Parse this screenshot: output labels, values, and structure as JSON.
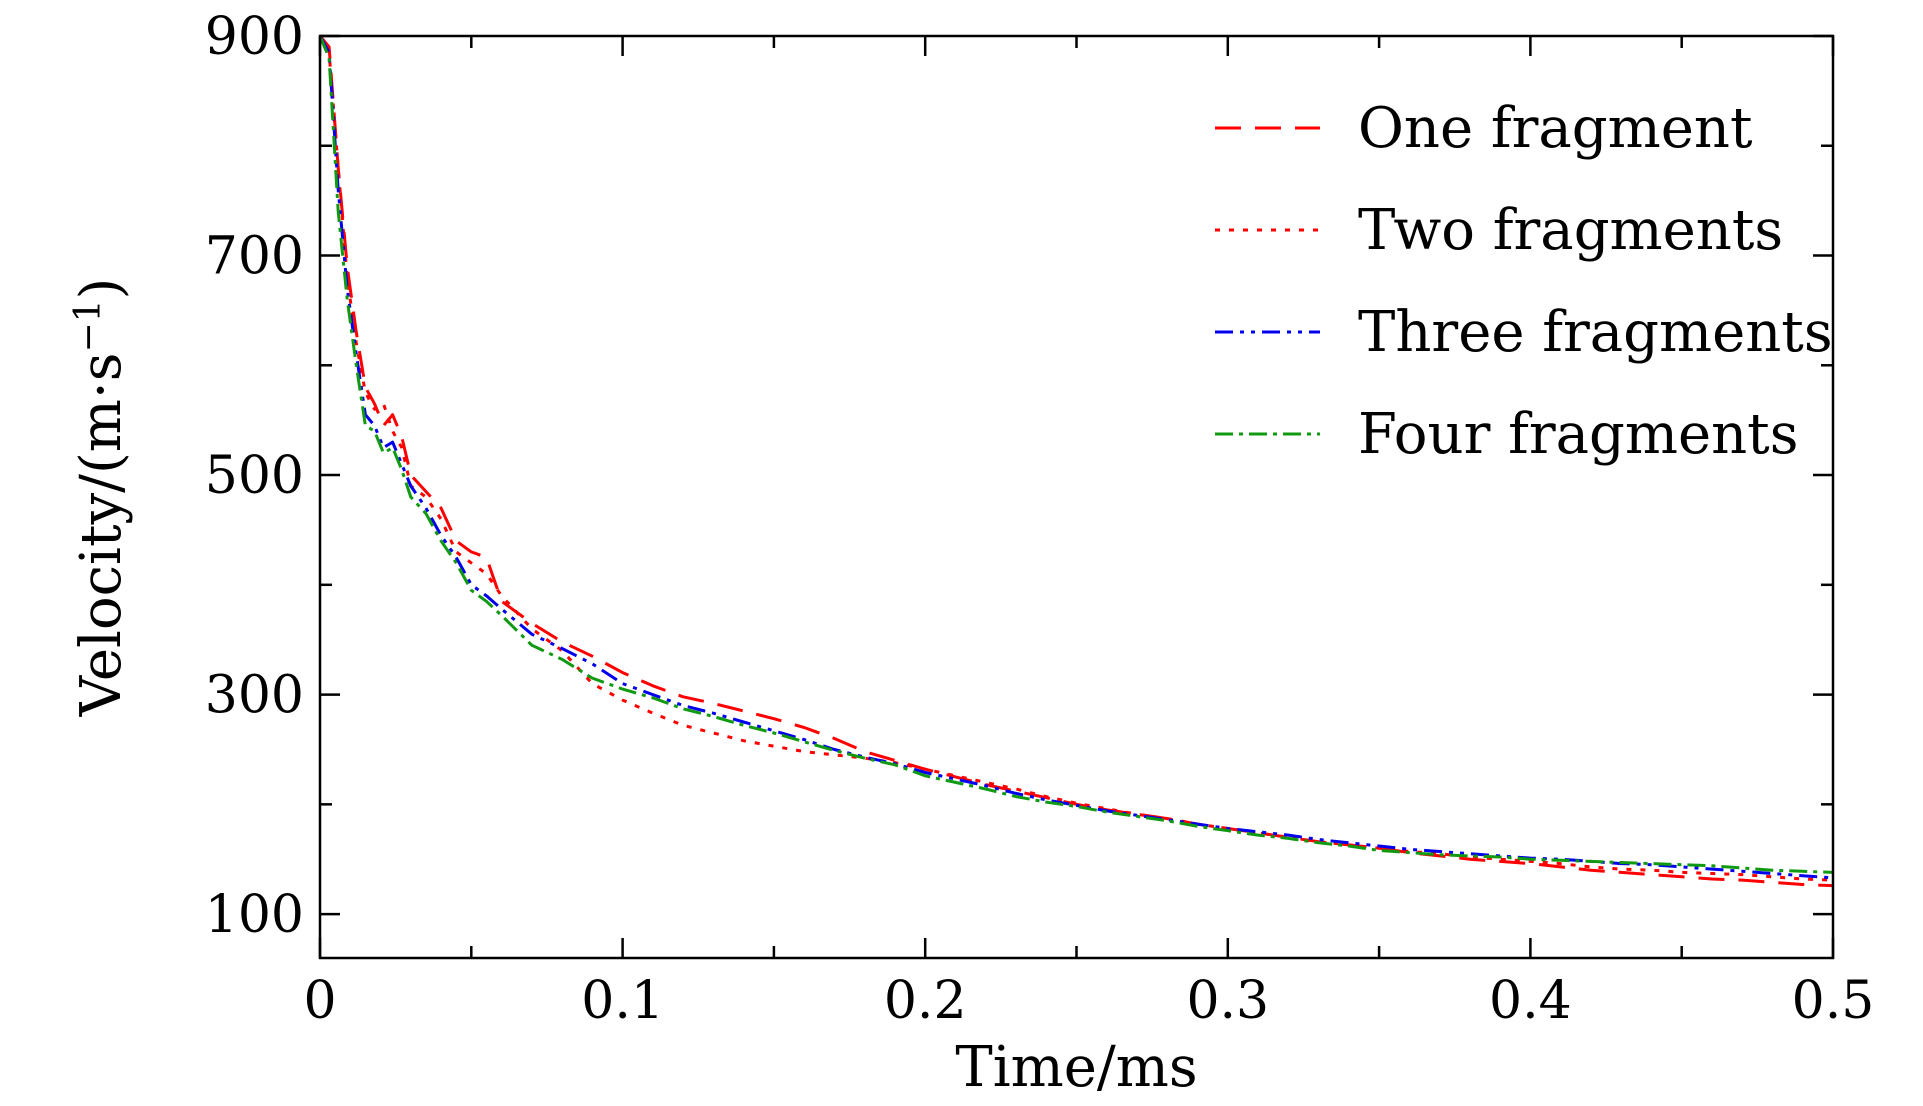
{
  "chart_data": {
    "type": "line",
    "xlabel": "Time/ms",
    "ylabel_main": "Velocity/(m·s",
    "ylabel_sup": "−1",
    "ylabel_close": ")",
    "xlim": [
      0,
      0.5
    ],
    "ylim": [
      60,
      900
    ],
    "x_ticks": [
      {
        "value": 0,
        "label": "0"
      },
      {
        "value": 0.1,
        "label": "0.1"
      },
      {
        "value": 0.2,
        "label": "0.2"
      },
      {
        "value": 0.3,
        "label": "0.3"
      },
      {
        "value": 0.4,
        "label": "0.4"
      },
      {
        "value": 0.5,
        "label": "0.5"
      }
    ],
    "x_minor_ticks": [
      0.05,
      0.15,
      0.25,
      0.35,
      0.45
    ],
    "y_ticks": [
      {
        "value": 100,
        "label": "100"
      },
      {
        "value": 300,
        "label": "300"
      },
      {
        "value": 500,
        "label": "500"
      },
      {
        "value": 700,
        "label": "700"
      },
      {
        "value": 900,
        "label": "900"
      }
    ],
    "y_minor_ticks": [
      200,
      400,
      600,
      800
    ],
    "grid": false,
    "legend_position": "top-right",
    "series": [
      {
        "name": "One fragment",
        "color": "#ff0000",
        "dash": "26 14",
        "x": [
          0,
          0.003,
          0.006,
          0.009,
          0.012,
          0.015,
          0.018,
          0.021,
          0.024,
          0.027,
          0.03,
          0.035,
          0.04,
          0.045,
          0.05,
          0.055,
          0.06,
          0.07,
          0.08,
          0.09,
          0.1,
          0.11,
          0.12,
          0.13,
          0.14,
          0.15,
          0.16,
          0.17,
          0.18,
          0.19,
          0.2,
          0.21,
          0.22,
          0.23,
          0.24,
          0.25,
          0.26,
          0.27,
          0.28,
          0.29,
          0.3,
          0.31,
          0.32,
          0.33,
          0.34,
          0.35,
          0.36,
          0.37,
          0.38,
          0.39,
          0.4,
          0.41,
          0.42,
          0.43,
          0.44,
          0.45,
          0.46,
          0.47,
          0.48,
          0.49,
          0.5
        ],
        "y": [
          900,
          890,
          780,
          690,
          630,
          580,
          565,
          545,
          555,
          535,
          500,
          485,
          470,
          440,
          430,
          425,
          385,
          365,
          348,
          335,
          320,
          308,
          298,
          292,
          285,
          278,
          270,
          260,
          248,
          240,
          232,
          225,
          218,
          212,
          206,
          200,
          195,
          191,
          187,
          182,
          178,
          174,
          170,
          166,
          163,
          160,
          156,
          153,
          150,
          148,
          146,
          143,
          140,
          138,
          136,
          134,
          132,
          131,
          129,
          127,
          126
        ]
      },
      {
        "name": "Two fragments",
        "color": "#ff0000",
        "dash": "5 9",
        "x": [
          0,
          0.003,
          0.006,
          0.009,
          0.012,
          0.015,
          0.018,
          0.021,
          0.024,
          0.027,
          0.03,
          0.035,
          0.04,
          0.045,
          0.05,
          0.055,
          0.06,
          0.07,
          0.08,
          0.09,
          0.1,
          0.11,
          0.12,
          0.13,
          0.14,
          0.15,
          0.16,
          0.17,
          0.18,
          0.19,
          0.2,
          0.21,
          0.22,
          0.23,
          0.24,
          0.25,
          0.26,
          0.27,
          0.28,
          0.29,
          0.3,
          0.31,
          0.32,
          0.33,
          0.34,
          0.35,
          0.36,
          0.37,
          0.38,
          0.39,
          0.4,
          0.41,
          0.42,
          0.43,
          0.44,
          0.45,
          0.46,
          0.47,
          0.48,
          0.49,
          0.5
        ],
        "y": [
          900,
          885,
          780,
          680,
          620,
          575,
          560,
          565,
          540,
          525,
          490,
          480,
          460,
          430,
          420,
          410,
          390,
          360,
          340,
          310,
          295,
          283,
          272,
          265,
          258,
          253,
          248,
          245,
          242,
          238,
          232,
          226,
          220,
          214,
          207,
          201,
          196,
          191,
          187,
          182,
          178,
          174,
          170,
          166,
          163,
          160,
          157,
          155,
          152,
          150,
          148,
          146,
          143,
          141,
          140,
          138,
          137,
          136,
          134,
          132,
          131
        ]
      },
      {
        "name": "Three fragments",
        "color": "#0000ee",
        "dash": "18 7 4 7 4 7",
        "x": [
          0,
          0.003,
          0.006,
          0.009,
          0.012,
          0.015,
          0.018,
          0.021,
          0.024,
          0.027,
          0.03,
          0.035,
          0.04,
          0.045,
          0.05,
          0.055,
          0.06,
          0.07,
          0.08,
          0.09,
          0.1,
          0.11,
          0.12,
          0.13,
          0.14,
          0.15,
          0.16,
          0.17,
          0.18,
          0.19,
          0.2,
          0.21,
          0.22,
          0.23,
          0.24,
          0.25,
          0.26,
          0.27,
          0.28,
          0.29,
          0.3,
          0.31,
          0.32,
          0.33,
          0.34,
          0.35,
          0.36,
          0.37,
          0.38,
          0.39,
          0.4,
          0.41,
          0.42,
          0.43,
          0.44,
          0.45,
          0.46,
          0.47,
          0.48,
          0.49,
          0.5
        ],
        "y": [
          900,
          885,
          760,
          670,
          610,
          555,
          545,
          525,
          530,
          510,
          490,
          470,
          445,
          425,
          400,
          390,
          378,
          355,
          342,
          328,
          310,
          300,
          290,
          283,
          275,
          267,
          259,
          250,
          243,
          237,
          229,
          223,
          217,
          210,
          204,
          199,
          194,
          190,
          186,
          182,
          178,
          175,
          172,
          168,
          165,
          162,
          159,
          157,
          155,
          153,
          151,
          150,
          148,
          146,
          145,
          143,
          141,
          139,
          137,
          135,
          133
        ]
      },
      {
        "name": "Four fragments",
        "color": "#119911",
        "dash": "18 6 4 6",
        "x": [
          0,
          0.003,
          0.006,
          0.009,
          0.012,
          0.015,
          0.018,
          0.021,
          0.024,
          0.027,
          0.03,
          0.035,
          0.04,
          0.045,
          0.05,
          0.055,
          0.06,
          0.07,
          0.08,
          0.09,
          0.1,
          0.11,
          0.12,
          0.13,
          0.14,
          0.15,
          0.16,
          0.17,
          0.18,
          0.19,
          0.2,
          0.21,
          0.22,
          0.23,
          0.24,
          0.25,
          0.26,
          0.27,
          0.28,
          0.29,
          0.3,
          0.31,
          0.32,
          0.33,
          0.34,
          0.35,
          0.36,
          0.37,
          0.38,
          0.39,
          0.4,
          0.41,
          0.42,
          0.43,
          0.44,
          0.45,
          0.46,
          0.47,
          0.48,
          0.49,
          0.5
        ],
        "y": [
          900,
          880,
          740,
          660,
          600,
          545,
          540,
          520,
          525,
          505,
          480,
          465,
          440,
          420,
          395,
          385,
          372,
          345,
          332,
          315,
          305,
          297,
          287,
          280,
          272,
          265,
          257,
          249,
          242,
          236,
          226,
          220,
          214,
          207,
          202,
          198,
          193,
          189,
          185,
          180,
          176,
          172,
          169,
          165,
          162,
          158,
          156,
          154,
          153,
          152,
          150,
          149,
          148,
          147,
          146,
          145,
          144,
          142,
          140,
          139,
          138
        ]
      }
    ]
  }
}
